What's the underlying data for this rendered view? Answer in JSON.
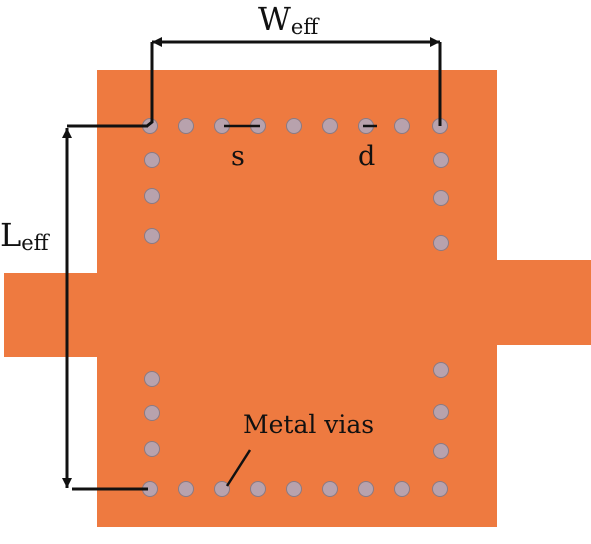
{
  "labels": {
    "w_eff_main": "W",
    "w_eff_sub": "eff",
    "l_eff_main": "L",
    "l_eff_sub": "eff",
    "spacing": "s",
    "diameter": "d",
    "vias": "Metal vias"
  },
  "colors": {
    "substrate": "#ee7a40",
    "via": "#b8a2ad",
    "via_outline": "#8a7a84",
    "line": "#111111",
    "background": "#ffffff"
  }
}
